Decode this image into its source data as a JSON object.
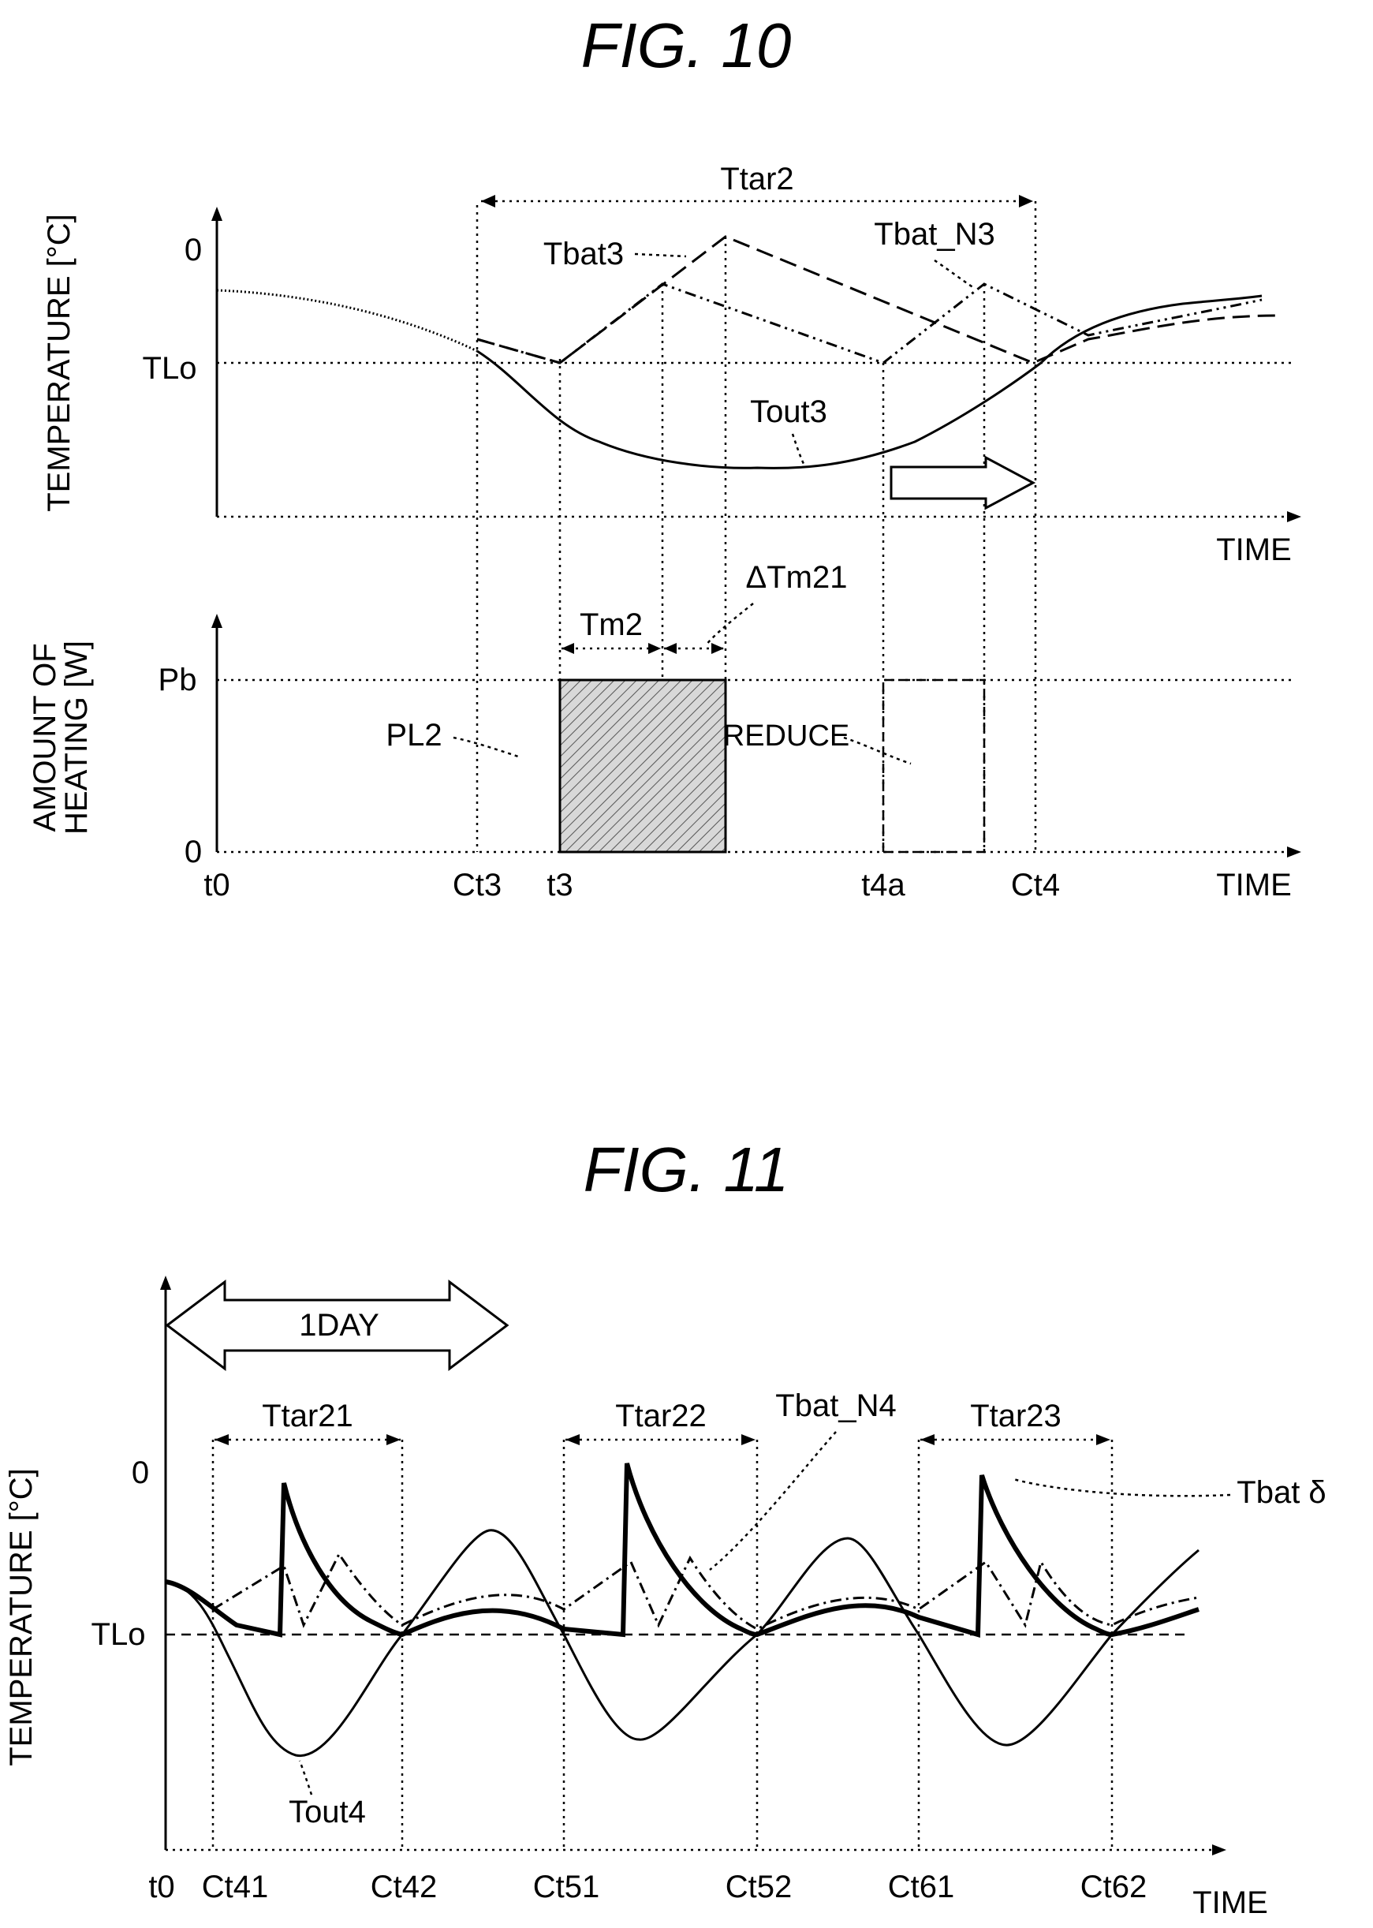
{
  "fig10": {
    "title": "FIG. 10",
    "y_label_top": "TEMPERATURE [°C]",
    "y_label_bottom_1": "AMOUNT OF",
    "y_label_bottom_2": "HEATING [W]",
    "time_label_top": "TIME",
    "time_label_bottom": "TIME",
    "tick_zero_top": "0",
    "tick_tlo": "TLo",
    "tick_pb": "Pb",
    "tick_zero_bottom": "0",
    "ttar": "Ttar2",
    "tbat": "Tbat3",
    "tbat_n": "Tbat_N3",
    "tout": "Tout3",
    "tm": "Tm2",
    "dtm": "ΔTm21",
    "pl": "PL2",
    "reduce": "REDUCE",
    "x_ticks": [
      "t0",
      "Ct3",
      "t3",
      "t4a",
      "Ct4"
    ]
  },
  "fig11": {
    "title": "FIG. 11",
    "y_label": "TEMPERATURE [°C]",
    "tick_zero": "0",
    "tick_tlo": "TLo",
    "day": "1DAY",
    "ttar": [
      "Ttar21",
      "Ttar22",
      "Ttar23"
    ],
    "tbat_n": "Tbat_N4",
    "tbat": "Tbat δ",
    "tout": "Tout4",
    "time_label": "TIME",
    "x_ticks": [
      "t0",
      "Ct41",
      "Ct42",
      "Ct51",
      "Ct52",
      "Ct61",
      "Ct62"
    ]
  }
}
